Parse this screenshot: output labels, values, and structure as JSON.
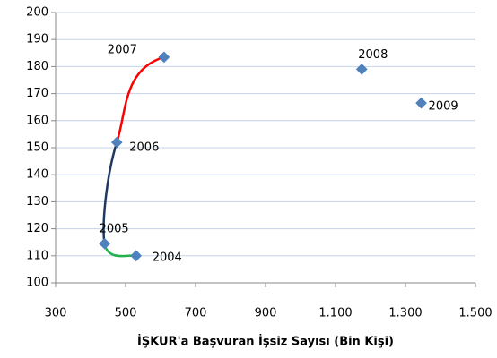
{
  "chart_data": {
    "type": "line",
    "x_label": "İŞKUR'a Başvuran İşsiz Sayısı (Bin Kişi)",
    "x": [
      530,
      440,
      475,
      610,
      1175,
      1345
    ],
    "values": [
      110,
      114.5,
      152,
      183.5,
      179,
      166.5
    ],
    "point_labels": [
      "2004",
      "2005",
      "2006",
      "2007",
      "2008",
      "2009"
    ],
    "segment_colors": [
      "#22b14c",
      "#1f3a5f",
      "#ff0000"
    ],
    "marker_color": "#4f81bd",
    "xlim": [
      300,
      1500
    ],
    "xticks": [
      300,
      500,
      700,
      900,
      {
        "value": 1100,
        "label": "1.100"
      },
      {
        "value": 1300,
        "label": "1.300"
      },
      {
        "value": 1500,
        "label": "1.500"
      }
    ],
    "ylim": [
      100,
      200
    ],
    "yticks": [
      100,
      110,
      120,
      130,
      140,
      150,
      160,
      170,
      180,
      190,
      200
    ],
    "grid": true
  }
}
